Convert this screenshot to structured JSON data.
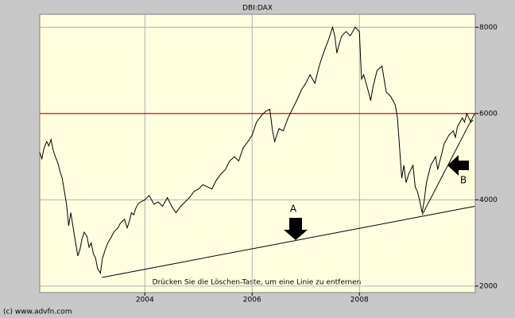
{
  "chart_data": {
    "type": "line",
    "title": "DBI:DAX",
    "color": "#000000",
    "x": [
      2002.04,
      2002.08,
      2002.12,
      2002.17,
      2002.21,
      2002.25,
      2002.29,
      2002.33,
      2002.38,
      2002.42,
      2002.46,
      2002.5,
      2002.54,
      2002.58,
      2002.62,
      2002.67,
      2002.71,
      2002.75,
      2002.79,
      2002.83,
      2002.87,
      2002.92,
      2002.96,
      2003.0,
      2003.04,
      2003.08,
      2003.12,
      2003.17,
      2003.21,
      2003.25,
      2003.29,
      2003.33,
      2003.38,
      2003.42,
      2003.46,
      2003.5,
      2003.54,
      2003.58,
      2003.62,
      2003.67,
      2003.71,
      2003.75,
      2003.79,
      2003.83,
      2003.87,
      2003.92,
      2004.0,
      2004.08,
      2004.17,
      2004.25,
      2004.33,
      2004.42,
      2004.5,
      2004.58,
      2004.67,
      2004.75,
      2004.83,
      2004.92,
      2005.0,
      2005.08,
      2005.17,
      2005.25,
      2005.33,
      2005.42,
      2005.5,
      2005.58,
      2005.67,
      2005.75,
      2005.83,
      2005.92,
      2006.0,
      2006.08,
      2006.17,
      2006.25,
      2006.33,
      2006.38,
      2006.42,
      2006.5,
      2006.58,
      2006.67,
      2006.75,
      2006.83,
      2006.92,
      2007.0,
      2007.08,
      2007.17,
      2007.25,
      2007.33,
      2007.42,
      2007.5,
      2007.54,
      2007.58,
      2007.62,
      2007.67,
      2007.75,
      2007.83,
      2007.92,
      2008.0,
      2008.04,
      2008.08,
      2008.17,
      2008.21,
      2008.25,
      2008.33,
      2008.42,
      2008.5,
      2008.58,
      2008.67,
      2008.71,
      2008.75,
      2008.79,
      2008.83,
      2008.87,
      2008.92,
      2009.0,
      2009.04,
      2009.08,
      2009.12,
      2009.17,
      2009.21,
      2009.25,
      2009.33,
      2009.42,
      2009.46,
      2009.5,
      2009.58,
      2009.67,
      2009.75,
      2009.79,
      2009.83,
      2009.92,
      2009.96,
      2010.0,
      2010.04,
      2010.08,
      2010.12
    ],
    "values": [
      5100,
      4950,
      5200,
      5350,
      5250,
      5400,
      5150,
      5000,
      4850,
      4650,
      4500,
      4200,
      3900,
      3400,
      3700,
      3300,
      3000,
      2700,
      2850,
      3100,
      3250,
      3150,
      2900,
      3000,
      2750,
      2650,
      2400,
      2300,
      2650,
      2800,
      2950,
      3050,
      3150,
      3250,
      3300,
      3350,
      3450,
      3500,
      3550,
      3350,
      3500,
      3700,
      3650,
      3800,
      3900,
      3950,
      4000,
      4100,
      3900,
      3950,
      3850,
      4050,
      3850,
      3700,
      3850,
      3950,
      4050,
      4200,
      4250,
      4350,
      4300,
      4250,
      4450,
      4600,
      4700,
      4900,
      5000,
      4900,
      5200,
      5350,
      5500,
      5800,
      5950,
      6050,
      6100,
      5600,
      5350,
      5650,
      5600,
      5900,
      6100,
      6300,
      6550,
      6700,
      6900,
      6700,
      7100,
      7400,
      7700,
      8000,
      7800,
      7400,
      7600,
      7800,
      7900,
      7800,
      8000,
      7900,
      6800,
      6900,
      6500,
      6300,
      6600,
      7000,
      7100,
      6500,
      6400,
      6200,
      5900,
      5200,
      4500,
      4800,
      4400,
      4600,
      4800,
      4300,
      4200,
      4000,
      3700,
      4000,
      4400,
      4800,
      5000,
      4700,
      4900,
      5300,
      5500,
      5600,
      5450,
      5700,
      5900,
      5800,
      6000,
      5900,
      5800,
      5850
    ],
    "xlim": [
      2002.04,
      2010.16
    ],
    "xticks": [
      2004,
      2006,
      2008
    ],
    "ylim": [
      1850,
      8300
    ],
    "yticks": [
      2000,
      4000,
      6000,
      8000
    ],
    "grid": true,
    "hline": {
      "value": 6000,
      "color": "#d00000"
    },
    "trendlines": [
      {
        "label": "A",
        "x": [
          2003.2,
          2010.15
        ],
        "values": [
          2200,
          3850
        ]
      },
      {
        "label": "B",
        "x": [
          2009.17,
          2010.15
        ],
        "values": [
          3650,
          6000
        ]
      }
    ],
    "annotation": "Drücken Sie die Löschen-Taste, um eine Linie zu entfernen",
    "footer": "(c) www.advfn.com"
  }
}
